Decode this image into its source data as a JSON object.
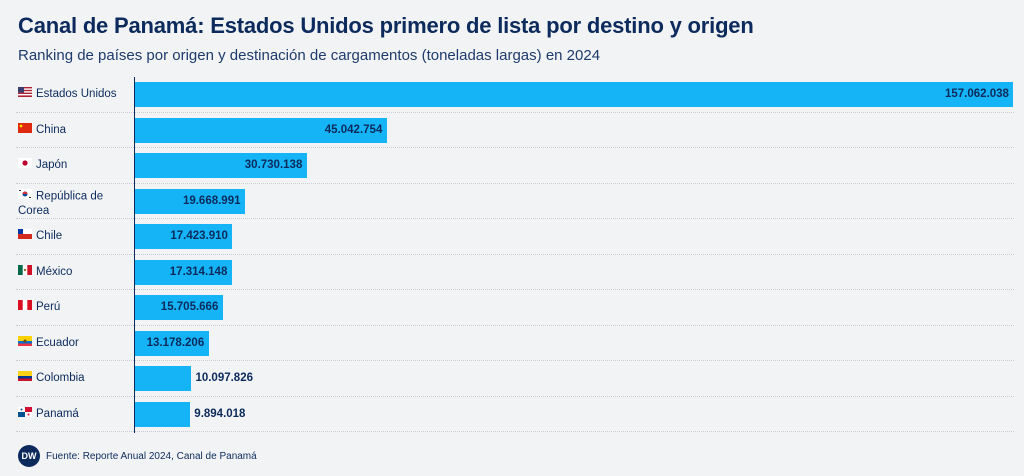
{
  "title": "Canal de Panamá: Estados Unidos primero de lista por destino y origen",
  "subtitle": "Ranking de países por origen y destinación de cargamentos (toneladas largas) en 2024",
  "source": "Fuente: Reporte Anual 2024, Canal de Panamá",
  "logo_text": "DW",
  "colors": {
    "bar": "#14b4f6",
    "text": "#0c2a5c",
    "background": "#f1f3f5"
  },
  "chart_data": {
    "type": "bar",
    "orientation": "horizontal",
    "title": "Canal de Panamá: Estados Unidos primero de lista por destino y origen",
    "subtitle": "Ranking de países por origen y destinación de cargamentos (toneladas largas) en 2024",
    "categories": [
      "Estados Unidos",
      "China",
      "Japón",
      "República de Corea",
      "Chile",
      "México",
      "Perú",
      "Ecuador",
      "Colombia",
      "Panamá"
    ],
    "values": [
      157062038,
      45042754,
      30730138,
      19668991,
      17423910,
      17314148,
      15705666,
      13178206,
      10097826,
      9894018
    ],
    "value_labels": [
      "157.062.038",
      "45.042.754",
      "30.730.138",
      "19.668.991",
      "17.423.910",
      "17.314.148",
      "15.705.666",
      "13.178.206",
      "10.097.826",
      "9.894.018"
    ],
    "xlim": [
      0,
      157062038
    ],
    "grid": false,
    "legend": "none"
  }
}
